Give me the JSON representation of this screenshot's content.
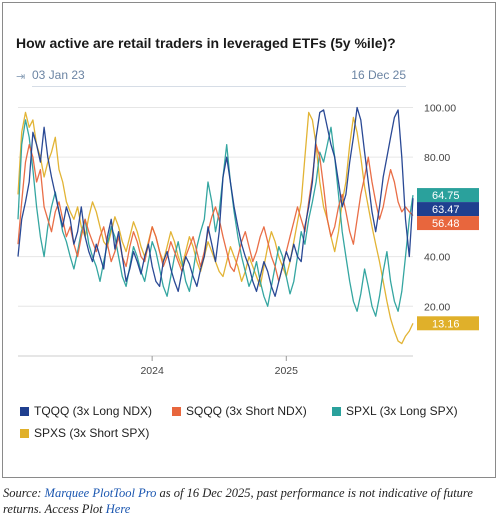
{
  "chart_data": {
    "type": "line",
    "title": "How active are retail traders in leveraged ETFs (5y %ile)?",
    "range_start": "03 Jan 23",
    "range_end": "16 Dec 25",
    "xlabel": "",
    "ylabel": "",
    "x_tick_labels": [
      "2024",
      "2025"
    ],
    "y_tick_labels": [
      "20.00",
      "40.00",
      "60.00",
      "80.00",
      "100.00"
    ],
    "ylim": [
      0,
      103
    ],
    "grid": "horizontal",
    "legend_position": "bottom",
    "series": [
      {
        "name": "TQQQ (3x Long NDX)",
        "color": "#1f3f8f",
        "last_value": "63.47",
        "values": [
          40,
          55,
          62,
          70,
          90,
          85,
          78,
          92,
          80,
          72,
          65,
          58,
          52,
          60,
          55,
          45,
          50,
          60,
          48,
          42,
          38,
          45,
          40,
          35,
          48,
          55,
          43,
          50,
          40,
          30,
          35,
          42,
          38,
          33,
          40,
          45,
          36,
          30,
          28,
          38,
          42,
          35,
          30,
          26,
          34,
          40,
          37,
          32,
          28,
          35,
          40,
          52,
          45,
          38,
          50,
          72,
          80,
          70,
          60,
          52,
          45,
          40,
          36,
          30,
          26,
          32,
          38,
          34,
          28,
          24,
          30,
          36,
          42,
          38,
          45,
          40,
          38,
          52,
          60,
          70,
          88,
          98,
          99,
          92,
          85,
          80,
          70,
          60,
          65,
          78,
          88,
          100,
          95,
          82,
          70,
          58,
          50,
          60,
          72,
          80,
          88,
          96,
          99,
          80,
          55,
          40,
          63.47
        ]
      },
      {
        "name": "SQQQ (3x Short NDX)",
        "color": "#e8663d",
        "last_value": "56.48",
        "values": [
          45,
          62,
          78,
          85,
          80,
          70,
          75,
          60,
          55,
          50,
          58,
          62,
          55,
          48,
          52,
          45,
          40,
          48,
          55,
          50,
          46,
          42,
          48,
          52,
          45,
          38,
          42,
          48,
          40,
          36,
          44,
          50,
          46,
          40,
          38,
          45,
          52,
          48,
          42,
          36,
          40,
          46,
          42,
          38,
          34,
          40,
          44,
          48,
          42,
          36,
          42,
          50,
          56,
          60,
          55,
          48,
          42,
          36,
          34,
          40,
          46,
          50,
          44,
          38,
          42,
          48,
          52,
          46,
          40,
          36,
          30,
          36,
          42,
          48,
          54,
          60,
          55,
          50,
          62,
          72,
          85,
          80,
          68,
          55,
          48,
          52,
          60,
          65,
          58,
          50,
          45,
          55,
          65,
          72,
          80,
          70,
          62,
          55,
          60,
          68,
          75,
          70,
          62,
          58,
          60,
          58,
          56.48
        ]
      },
      {
        "name": "SPXL (3x Long SPX)",
        "color": "#2aa19c",
        "last_value": "64.75",
        "values": [
          55,
          85,
          95,
          88,
          75,
          60,
          48,
          40,
          52,
          60,
          66,
          58,
          50,
          46,
          40,
          35,
          42,
          50,
          55,
          45,
          40,
          36,
          30,
          38,
          45,
          52,
          48,
          40,
          32,
          28,
          36,
          44,
          40,
          34,
          30,
          38,
          46,
          42,
          35,
          28,
          24,
          32,
          40,
          46,
          38,
          30,
          26,
          34,
          44,
          50,
          55,
          70,
          62,
          50,
          58,
          72,
          85,
          70,
          58,
          48,
          40,
          34,
          28,
          32,
          38,
          30,
          24,
          20,
          28,
          36,
          44,
          40,
          32,
          25,
          30,
          40,
          50,
          45,
          55,
          62,
          70,
          82,
          78,
          85,
          92,
          80,
          65,
          50,
          40,
          30,
          22,
          18,
          25,
          35,
          28,
          20,
          16,
          24,
          34,
          42,
          30,
          22,
          18,
          26,
          40,
          55,
          64.75
        ]
      },
      {
        "name": "SPXS (3x Short SPX)",
        "color": "#e0b02a",
        "last_value": "13.16",
        "values": [
          65,
          90,
          98,
          92,
          95,
          85,
          80,
          72,
          78,
          82,
          88,
          75,
          70,
          62,
          58,
          55,
          60,
          52,
          48,
          56,
          62,
          58,
          52,
          46,
          44,
          50,
          56,
          52,
          46,
          42,
          48,
          54,
          50,
          44,
          40,
          46,
          52,
          48,
          42,
          38,
          44,
          50,
          46,
          40,
          36,
          42,
          48,
          44,
          38,
          34,
          40,
          46,
          42,
          38,
          34,
          32,
          38,
          44,
          40,
          36,
          30,
          34,
          40,
          36,
          32,
          28,
          36,
          44,
          50,
          46,
          40,
          36,
          32,
          38,
          46,
          54,
          62,
          80,
          98,
          95,
          85,
          70,
          60,
          55,
          48,
          42,
          50,
          62,
          70,
          85,
          96,
          90,
          80,
          68,
          60,
          52,
          45,
          38,
          30,
          22,
          15,
          10,
          6,
          5,
          8,
          10,
          13.16
        ]
      }
    ]
  },
  "source": {
    "prefix": "Source: ",
    "link1": "Marquee PlotTool Pro",
    "middle": " as of 16 Dec 2025, past performance is not indicative of future returns. Access Plot ",
    "link2": "Here"
  }
}
